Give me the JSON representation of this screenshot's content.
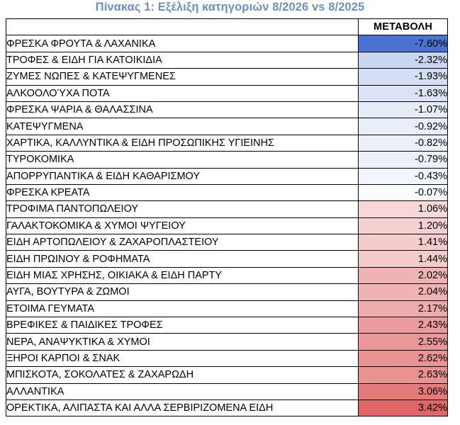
{
  "title": "Πίνακας 1: Εξέλιξη κατηγοριών 8/2026 vs 8/2025",
  "table": {
    "header": "ΜΕΤΑΒΟΛΗ",
    "rows": [
      {
        "category": "ΦΡΕΣΚΑ ΦΡΟΥΤΑ & ΛΑΧΑΝΙΚΑ",
        "change": "-7.60%",
        "value": -7.6,
        "color": "#4a72d0"
      },
      {
        "category": "ΤΡΟΦΕΣ & ΕΙΔΗ ΓΙΑ ΚΑΤΟΙΚΙΔΙΑ",
        "change": "-2.32%",
        "value": -2.32,
        "color": "#c9d6f1"
      },
      {
        "category": "ΖΥΜΕΣ ΝΩΠΕΣ & ΚΑΤΕΨΥΓΜΕΝΕΣ",
        "change": "-1.93%",
        "value": -1.93,
        "color": "#d4def4"
      },
      {
        "category": "ΑΛΚΟΟΛΟΎΧΑ ΠΟΤΑ",
        "change": "-1.63%",
        "value": -1.63,
        "color": "#dbe3f5"
      },
      {
        "category": "ΦΡΕΣΚΑ ΨΑΡΙΑ & ΘΑΛΑΣΣΙΝΑ",
        "change": "-1.07%",
        "value": -1.07,
        "color": "#e6ecf8"
      },
      {
        "category": "ΚΑΤΕΨΥΓΜΕΝΑ",
        "change": "-0.92%",
        "value": -0.92,
        "color": "#e9eef9"
      },
      {
        "category": "ΧΑΡΤΙΚΑ, ΚΑΛΛΥΝΤΙΚΑ & ΕΙΔΗ ΠΡΟΣΩΠΙΚΗΣ ΥΓΙΕΙΝΗΣ",
        "change": "-0.82%",
        "value": -0.82,
        "color": "#ebf0f9"
      },
      {
        "category": "ΤΥΡΟΚΟΜΙΚΑ",
        "change": "-0.79%",
        "value": -0.79,
        "color": "#ecf0fa"
      },
      {
        "category": "ΑΠΟΡΡΥΠΑΝΤΙΚΑ & ΕΙΔΗ ΚΑΘΑΡΙΣΜΟΥ",
        "change": "-0.43%",
        "value": -0.43,
        "color": "#f3f6fc"
      },
      {
        "category": "ΦΡΕΣΚΑ ΚΡΕΑΤΑ",
        "change": "-0.07%",
        "value": -0.07,
        "color": "#fbfcfe"
      },
      {
        "category": "ΤΡΟΦΙΜΑ ΠΑΝΤΟΠΩΛΕΙΟΥ",
        "change": "1.06%",
        "value": 1.06,
        "color": "#f7d7d7"
      },
      {
        "category": "ΓΑΛΑΚΤΟΚΟΜΙΚΑ & ΧΥΜΟΙ ΨΥΓΕΙΟΥ",
        "change": "1.20%",
        "value": 1.2,
        "color": "#f6d1d1"
      },
      {
        "category": "ΕΙΔΗ ΑΡΤΟΠΩΛΕΙΟΥ & ΖΑΧΑΡΟΠΛΑΣΤΕΙΟΥ",
        "change": "1.41%",
        "value": 1.41,
        "color": "#f5cbcb"
      },
      {
        "category": "ΕΙΔΗ ΠΡΩΙΝΟΥ & ΡΟΦΗΜΑΤΑ",
        "change": "1.44%",
        "value": 1.44,
        "color": "#f4caca"
      },
      {
        "category": "ΕΙΔΗ ΜΙΑΣ ΧΡΗΣΗΣ, ΟΙΚΙΑΚΑ & ΕΙΔΗ ΠΑΡΤΥ",
        "change": "2.02%",
        "value": 2.02,
        "color": "#f0b3b3"
      },
      {
        "category": "ΑΥΓΑ, ΒΟΥΤΥΡΑ & ΖΩΜΟΙ",
        "change": "2.04%",
        "value": 2.04,
        "color": "#f0b2b2"
      },
      {
        "category": "ΕΤΟΙΜΑ ΓΕΥΜΑΤΑ",
        "change": "2.17%",
        "value": 2.17,
        "color": "#eeabab"
      },
      {
        "category": "ΒΡΕΦΙΚΕΣ & ΠΑΙΔΙΚΕΣ ΤΡΟΦΕΣ",
        "change": "2.43%",
        "value": 2.43,
        "color": "#eb9d9d"
      },
      {
        "category": "ΝΕΡΑ, ΑΝΑΨΥΚΤΙΚΑ & ΧΥΜΟΙ",
        "change": "2.55%",
        "value": 2.55,
        "color": "#ea9797"
      },
      {
        "category": "ΞΗΡΟΙ ΚΑΡΠΟΙ & ΣΝΑΚ",
        "change": "2.62%",
        "value": 2.62,
        "color": "#e99393"
      },
      {
        "category": "ΜΠΙΣΚΟΤΑ, ΣΟΚΟΛΑΤΕΣ & ΖΑΧΑΡΩΔΗ",
        "change": "2.63%",
        "value": 2.63,
        "color": "#e99292"
      },
      {
        "category": "ΑΛΛΑΝΤΙΚΑ",
        "change": "3.06%",
        "value": 3.06,
        "color": "#e47b7b"
      },
      {
        "category": "ΟΡΕΚΤΙΚΑ, ΑΛΙΠΑΣΤΑ ΚΑΙ ΑΛΛΑ ΣΕΡΒΙΡΙΖΟΜΕΝΑ ΕΙΔΗ",
        "change": "3.42%",
        "value": 3.42,
        "color": "#e06565"
      }
    ]
  }
}
